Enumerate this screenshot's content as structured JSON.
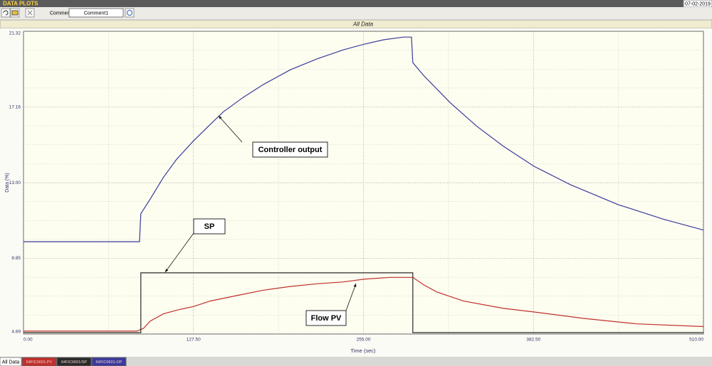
{
  "header": {
    "title": "DATA PLOTS",
    "date": "07-02-2019"
  },
  "toolbar": {
    "comment_label": "Comment",
    "comment_value": "Comment1"
  },
  "tabs": {
    "active": "All Data"
  },
  "chart_data": {
    "type": "line",
    "title": "All Data",
    "x_label": "Time (sec)",
    "y_label": "Data (%)",
    "xlim": [
      0,
      510
    ],
    "ylim": [
      4.69,
      21.32
    ],
    "xticks": [
      {
        "value": 0,
        "label": "0.00"
      },
      {
        "value": 127.5,
        "label": "127.50"
      },
      {
        "value": 255,
        "label": "255.00"
      },
      {
        "value": 382.5,
        "label": "382.50"
      },
      {
        "value": 510,
        "label": "510.00"
      }
    ],
    "yticks": [
      4.69,
      8.85,
      {
        "value": 13,
        "label": "13.00"
      },
      17.16,
      21.32
    ],
    "grid": true,
    "series": [
      {
        "name": "64FIC0601-PV",
        "color": "#c0302c",
        "x": [
          0,
          85,
          90,
          95,
          105,
          115,
          127.5,
          140,
          160,
          180,
          200,
          220,
          240,
          255,
          275,
          292,
          300,
          310,
          330,
          360,
          383,
          420,
          460,
          510
        ],
        "values": [
          4.85,
          4.85,
          5.0,
          5.4,
          5.8,
          6.0,
          6.2,
          6.5,
          6.8,
          7.1,
          7.3,
          7.45,
          7.55,
          7.7,
          7.8,
          7.8,
          7.4,
          7.0,
          6.5,
          6.1,
          5.9,
          5.55,
          5.25,
          5.1
        ]
      },
      {
        "name": "64FIC0601/SP",
        "color": "#2a2a2a",
        "x": [
          0,
          88,
          88,
          292,
          292,
          510
        ],
        "values": [
          4.77,
          4.77,
          8.05,
          8.05,
          4.77,
          4.77
        ]
      },
      {
        "name": "64FIC0601-OP",
        "color": "#3b3b9c",
        "x": [
          0,
          87,
          88,
          95,
          105,
          115,
          127.5,
          140,
          150,
          165,
          180,
          200,
          220,
          240,
          255,
          270,
          285,
          291,
          292,
          300,
          320,
          340,
          360,
          383,
          410,
          446,
          480,
          510
        ],
        "values": [
          9.76,
          9.76,
          11.3,
          12.1,
          13.3,
          14.3,
          15.3,
          16.2,
          16.9,
          17.7,
          18.4,
          19.2,
          19.8,
          20.3,
          20.6,
          20.85,
          21.0,
          21.0,
          19.6,
          18.9,
          17.4,
          16.1,
          15.0,
          13.9,
          12.9,
          11.8,
          11.0,
          10.4
        ]
      }
    ],
    "annotations": [
      {
        "text": "Controller output"
      },
      {
        "text": "SP"
      },
      {
        "text": "Flow PV"
      }
    ]
  }
}
